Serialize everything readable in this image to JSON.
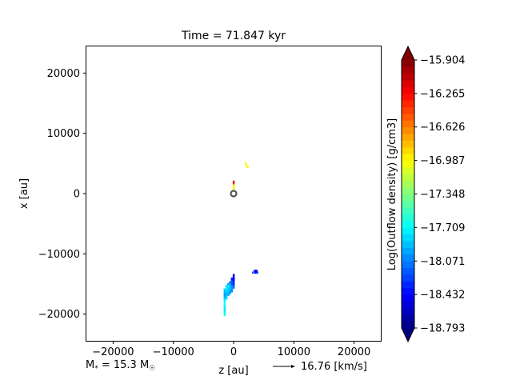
{
  "chart_data": {
    "type": "heatmap",
    "title": "Time = 71.847 kyr",
    "xlabel": "z [au]",
    "ylabel": "x [au]",
    "xlim": [
      -24500,
      24500
    ],
    "ylim": [
      -24500,
      24500
    ],
    "x_ticks": [
      -20000,
      -10000,
      0,
      10000,
      20000
    ],
    "x_tick_labels": [
      "−20000",
      "−10000",
      "0",
      "10000",
      "20000"
    ],
    "y_ticks": [
      -20000,
      -10000,
      0,
      10000,
      20000
    ],
    "y_tick_labels": [
      "−20000",
      "−10000",
      "0",
      "10000",
      "20000"
    ],
    "colorbar": {
      "label": "Log(Outflow density) [g/cm3]",
      "min": -18.793,
      "max": -15.904,
      "colormap": "jet",
      "extend": "both",
      "levels": 40,
      "ticks": [
        -15.904,
        -16.265,
        -16.626,
        -16.987,
        -17.348,
        -17.709,
        -18.071,
        -18.432,
        -18.793
      ],
      "tick_labels": [
        "−15.904",
        "−16.265",
        "−16.626",
        "−16.987",
        "−17.348",
        "−17.709",
        "−18.071",
        "−18.432",
        "−18.793"
      ]
    },
    "star_marker": {
      "z": 0,
      "x": 0
    },
    "cells": [
      {
        "z": 0,
        "x": 2000,
        "v": -16.2
      },
      {
        "z": 0,
        "x": 1700,
        "v": -16.4
      },
      {
        "z": 0,
        "x": 1400,
        "v": -16.9
      },
      {
        "z": 0,
        "x": 1000,
        "v": -17.0
      },
      {
        "z": 0,
        "x": 700,
        "v": -17.1
      },
      {
        "z": 2000,
        "x": 5000,
        "v": -17.1
      },
      {
        "z": 2100,
        "x": 4700,
        "v": -17.0
      },
      {
        "z": 2300,
        "x": 4400,
        "v": -16.95
      },
      {
        "z": 3500,
        "x": -12800,
        "v": -18.5
      },
      {
        "z": 3800,
        "x": -12800,
        "v": -18.55
      },
      {
        "z": 3200,
        "x": -13100,
        "v": -18.2
      },
      {
        "z": 3600,
        "x": -13100,
        "v": -18.45
      },
      {
        "z": 3900,
        "x": -13100,
        "v": -18.3
      },
      {
        "z": 0,
        "x": -13500,
        "v": -18.5
      },
      {
        "z": 0,
        "x": -13800,
        "v": -18.45
      },
      {
        "z": -300,
        "x": -14100,
        "v": -18.4
      },
      {
        "z": 0,
        "x": -14100,
        "v": -18.5
      },
      {
        "z": -300,
        "x": -14400,
        "v": -18.3
      },
      {
        "z": 0,
        "x": -14400,
        "v": -18.45
      },
      {
        "z": -600,
        "x": -14700,
        "v": -18.2
      },
      {
        "z": -300,
        "x": -14700,
        "v": -18.1
      },
      {
        "z": 0,
        "x": -14700,
        "v": -18.3
      },
      {
        "z": -900,
        "x": -15000,
        "v": -18.0
      },
      {
        "z": -600,
        "x": -15000,
        "v": -17.9
      },
      {
        "z": -300,
        "x": -15000,
        "v": -18.2
      },
      {
        "z": 0,
        "x": -15000,
        "v": -18.35
      },
      {
        "z": -1200,
        "x": -15300,
        "v": -17.8
      },
      {
        "z": -900,
        "x": -15300,
        "v": -17.75
      },
      {
        "z": -600,
        "x": -15300,
        "v": -17.85
      },
      {
        "z": -300,
        "x": -15300,
        "v": -18.05
      },
      {
        "z": 0,
        "x": -15300,
        "v": -18.2
      },
      {
        "z": -1200,
        "x": -15600,
        "v": -17.75
      },
      {
        "z": -900,
        "x": -15600,
        "v": -17.8
      },
      {
        "z": -600,
        "x": -15600,
        "v": -17.9
      },
      {
        "z": -300,
        "x": -15600,
        "v": -18.0
      },
      {
        "z": 0,
        "x": -15600,
        "v": -18.1
      },
      {
        "z": -1500,
        "x": -15900,
        "v": -17.85
      },
      {
        "z": -1200,
        "x": -15900,
        "v": -17.75
      },
      {
        "z": -900,
        "x": -15900,
        "v": -17.8
      },
      {
        "z": -600,
        "x": -15900,
        "v": -17.9
      },
      {
        "z": -300,
        "x": -15900,
        "v": -18.0
      },
      {
        "z": -1500,
        "x": -16200,
        "v": -17.9
      },
      {
        "z": -1200,
        "x": -16200,
        "v": -17.8
      },
      {
        "z": -900,
        "x": -16200,
        "v": -17.85
      },
      {
        "z": -600,
        "x": -16200,
        "v": -17.95
      },
      {
        "z": -300,
        "x": -16200,
        "v": -18.05
      },
      {
        "z": -1500,
        "x": -16500,
        "v": -17.95
      },
      {
        "z": -1200,
        "x": -16500,
        "v": -17.85
      },
      {
        "z": -900,
        "x": -16500,
        "v": -17.9
      },
      {
        "z": -600,
        "x": -16500,
        "v": -18.0
      },
      {
        "z": -1500,
        "x": -16800,
        "v": -18.0
      },
      {
        "z": -1200,
        "x": -16800,
        "v": -17.9
      },
      {
        "z": -900,
        "x": -16800,
        "v": -17.95
      },
      {
        "z": -1500,
        "x": -17100,
        "v": -17.95
      },
      {
        "z": -1200,
        "x": -17100,
        "v": -17.85
      },
      {
        "z": -1500,
        "x": -17400,
        "v": -17.85
      },
      {
        "z": -1200,
        "x": -17400,
        "v": -17.8
      },
      {
        "z": -1500,
        "x": -17700,
        "v": -17.75
      },
      {
        "z": -1500,
        "x": -18000,
        "v": -17.7
      },
      {
        "z": -1500,
        "x": -18300,
        "v": -17.65
      },
      {
        "z": -1500,
        "x": -18600,
        "v": -17.7
      },
      {
        "z": -1500,
        "x": -18900,
        "v": -17.75
      },
      {
        "z": -1500,
        "x": -19200,
        "v": -17.8
      },
      {
        "z": -1500,
        "x": -19500,
        "v": -17.75
      },
      {
        "z": -1500,
        "x": -19800,
        "v": -17.7
      },
      {
        "z": -1500,
        "x": -20100,
        "v": -17.65
      }
    ],
    "cell_size": 300
  },
  "annotations": {
    "mass_prefix": "M",
    "mass_sub": "*",
    "mass_value": " = 15.3 M",
    "mass_sun_sub": "☉",
    "arrow_label": "16.76 [km/s]"
  }
}
